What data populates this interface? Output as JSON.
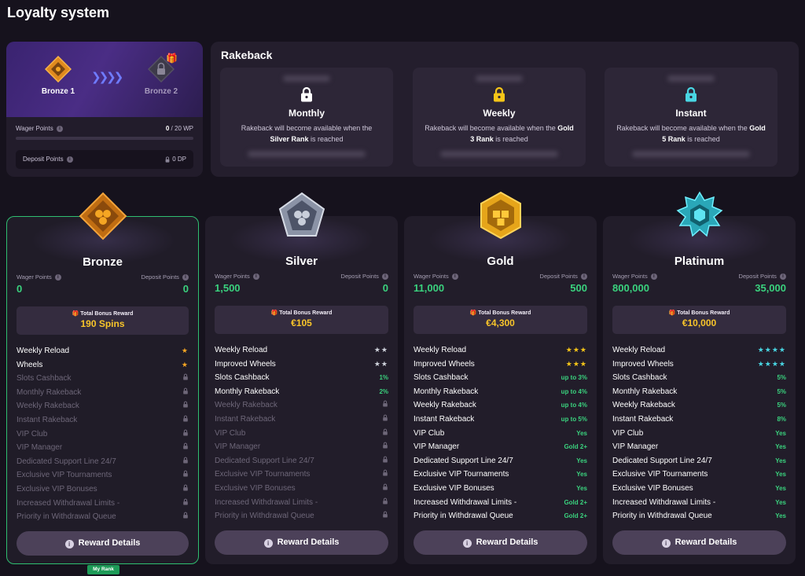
{
  "page": {
    "title": "Loyalty system"
  },
  "progress": {
    "current_rank": "Bronze 1",
    "next_rank": "Bronze 2",
    "wager_label": "Wager Points",
    "wager_current": "0",
    "wager_target": "/ 20 WP",
    "wager_fraction": 0,
    "deposit_label": "Deposit Points",
    "deposit_value": "0 DP"
  },
  "rakeback": {
    "title": "Rakeback",
    "items": [
      {
        "name": "Monthly",
        "desc_pre": "Rakeback will become available when the",
        "rank": "Silver Rank",
        "desc_post": "is reached",
        "lock_color": "#ffffff"
      },
      {
        "name": "Weekly",
        "desc_pre": "Rakeback will become available when the",
        "rank": "Gold 3 Rank",
        "desc_post": "is reached",
        "lock_color": "#f5c518"
      },
      {
        "name": "Instant",
        "desc_pre": "Rakeback will become available when the",
        "rank": "Gold 5 Rank",
        "desc_post": "is reached",
        "lock_color": "#49d6e3"
      }
    ]
  },
  "labels": {
    "wager_points": "Wager Points",
    "deposit_points": "Deposit Points",
    "total_bonus_reward": "Total Bonus Reward",
    "reward_details": "Reward Details",
    "my_rank": "My Rank"
  },
  "tiers": [
    {
      "name": "Bronze",
      "wager": "0",
      "deposit": "0",
      "reward": "190 Spins",
      "features": [
        {
          "label": "Weekly Reload",
          "on": true,
          "value": "★",
          "kind": "stars",
          "color": "#f5a623"
        },
        {
          "label": "Wheels",
          "on": true,
          "value": "★",
          "kind": "stars",
          "color": "#f5a623"
        },
        {
          "label": "Slots Cashback",
          "on": false,
          "value": "",
          "kind": "lock"
        },
        {
          "label": "Monthly Rakeback",
          "on": false,
          "value": "",
          "kind": "lock"
        },
        {
          "label": "Weekly Rakeback",
          "on": false,
          "value": "",
          "kind": "lock"
        },
        {
          "label": "Instant Rakeback",
          "on": false,
          "value": "",
          "kind": "lock"
        },
        {
          "label": "VIP Club",
          "on": false,
          "value": "",
          "kind": "lock"
        },
        {
          "label": "VIP Manager",
          "on": false,
          "value": "",
          "kind": "lock"
        },
        {
          "label": "Dedicated Support Line 24/7",
          "on": false,
          "value": "",
          "kind": "lock"
        },
        {
          "label": "Exclusive VIP Tournaments",
          "on": false,
          "value": "",
          "kind": "lock"
        },
        {
          "label": "Exclusive VIP Bonuses",
          "on": false,
          "value": "",
          "kind": "lock"
        },
        {
          "label": "Increased Withdrawal Limits -",
          "on": false,
          "value": "",
          "kind": "lock"
        },
        {
          "label": "Priority in Withdrawal Queue",
          "on": false,
          "value": "",
          "kind": "lock"
        }
      ]
    },
    {
      "name": "Silver",
      "wager": "1,500",
      "deposit": "0",
      "reward": "€105",
      "features": [
        {
          "label": "Weekly Reload",
          "on": true,
          "value": "★★",
          "kind": "stars",
          "color": "#cfd3dc"
        },
        {
          "label": "Improved Wheels",
          "on": true,
          "value": "★★",
          "kind": "stars",
          "color": "#cfd3dc"
        },
        {
          "label": "Slots Cashback",
          "on": true,
          "value": "1%",
          "kind": "pct"
        },
        {
          "label": "Monthly Rakeback",
          "on": true,
          "value": "2%",
          "kind": "pct"
        },
        {
          "label": "Weekly Rakeback",
          "on": false,
          "value": "",
          "kind": "lock"
        },
        {
          "label": "Instant Rakeback",
          "on": false,
          "value": "",
          "kind": "lock"
        },
        {
          "label": "VIP Club",
          "on": false,
          "value": "",
          "kind": "lock"
        },
        {
          "label": "VIP Manager",
          "on": false,
          "value": "",
          "kind": "lock"
        },
        {
          "label": "Dedicated Support Line 24/7",
          "on": false,
          "value": "",
          "kind": "lock"
        },
        {
          "label": "Exclusive VIP Tournaments",
          "on": false,
          "value": "",
          "kind": "lock"
        },
        {
          "label": "Exclusive VIP Bonuses",
          "on": false,
          "value": "",
          "kind": "lock"
        },
        {
          "label": "Increased Withdrawal Limits -",
          "on": false,
          "value": "",
          "kind": "lock"
        },
        {
          "label": "Priority in Withdrawal Queue",
          "on": false,
          "value": "",
          "kind": "lock"
        }
      ]
    },
    {
      "name": "Gold",
      "wager": "11,000",
      "deposit": "500",
      "reward": "€4,300",
      "features": [
        {
          "label": "Weekly Reload",
          "on": true,
          "value": "★★★",
          "kind": "stars",
          "color": "#f5c518"
        },
        {
          "label": "Improved Wheels",
          "on": true,
          "value": "★★★",
          "kind": "stars",
          "color": "#f5c518"
        },
        {
          "label": "Slots Cashback",
          "on": true,
          "value": "up to 3%",
          "kind": "pct"
        },
        {
          "label": "Monthly Rakeback",
          "on": true,
          "value": "up to 4%",
          "kind": "pct"
        },
        {
          "label": "Weekly Rakeback",
          "on": true,
          "value": "up to 4%",
          "kind": "pct"
        },
        {
          "label": "Instant Rakeback",
          "on": true,
          "value": "up to 5%",
          "kind": "pct"
        },
        {
          "label": "VIP Club",
          "on": true,
          "value": "Yes",
          "kind": "yes"
        },
        {
          "label": "VIP Manager",
          "on": true,
          "value": "Gold 2+",
          "kind": "yes"
        },
        {
          "label": "Dedicated Support Line 24/7",
          "on": true,
          "value": "Yes",
          "kind": "yes"
        },
        {
          "label": "Exclusive VIP Tournaments",
          "on": true,
          "value": "Yes",
          "kind": "yes"
        },
        {
          "label": "Exclusive VIP Bonuses",
          "on": true,
          "value": "Yes",
          "kind": "yes"
        },
        {
          "label": "Increased Withdrawal Limits -",
          "on": true,
          "value": "Gold 2+",
          "kind": "yes"
        },
        {
          "label": "Priority in Withdrawal Queue",
          "on": true,
          "value": "Gold 2+",
          "kind": "yes"
        }
      ]
    },
    {
      "name": "Platinum",
      "wager": "800,000",
      "deposit": "35,000",
      "reward": "€10,000",
      "features": [
        {
          "label": "Weekly Reload",
          "on": true,
          "value": "★★★★",
          "kind": "stars",
          "color": "#49d6e3"
        },
        {
          "label": "Improved Wheels",
          "on": true,
          "value": "★★★★",
          "kind": "stars",
          "color": "#49d6e3"
        },
        {
          "label": "Slots Cashback",
          "on": true,
          "value": "5%",
          "kind": "pct"
        },
        {
          "label": "Monthly Rakeback",
          "on": true,
          "value": "5%",
          "kind": "pct"
        },
        {
          "label": "Weekly Rakeback",
          "on": true,
          "value": "5%",
          "kind": "pct"
        },
        {
          "label": "Instant Rakeback",
          "on": true,
          "value": "8%",
          "kind": "pct"
        },
        {
          "label": "VIP Club",
          "on": true,
          "value": "Yes",
          "kind": "yes"
        },
        {
          "label": "VIP Manager",
          "on": true,
          "value": "Yes",
          "kind": "yes"
        },
        {
          "label": "Dedicated Support Line 24/7",
          "on": true,
          "value": "Yes",
          "kind": "yes"
        },
        {
          "label": "Exclusive VIP Tournaments",
          "on": true,
          "value": "Yes",
          "kind": "yes"
        },
        {
          "label": "Exclusive VIP Bonuses",
          "on": true,
          "value": "Yes",
          "kind": "yes"
        },
        {
          "label": "Increased Withdrawal Limits -",
          "on": true,
          "value": "Yes",
          "kind": "yes"
        },
        {
          "label": "Priority in Withdrawal Queue",
          "on": true,
          "value": "Yes",
          "kind": "yes"
        }
      ]
    }
  ],
  "colors": {
    "accent_green": "#3ad27e",
    "reward_gold": "#f8c52a",
    "active_border": "#2fbf71"
  }
}
